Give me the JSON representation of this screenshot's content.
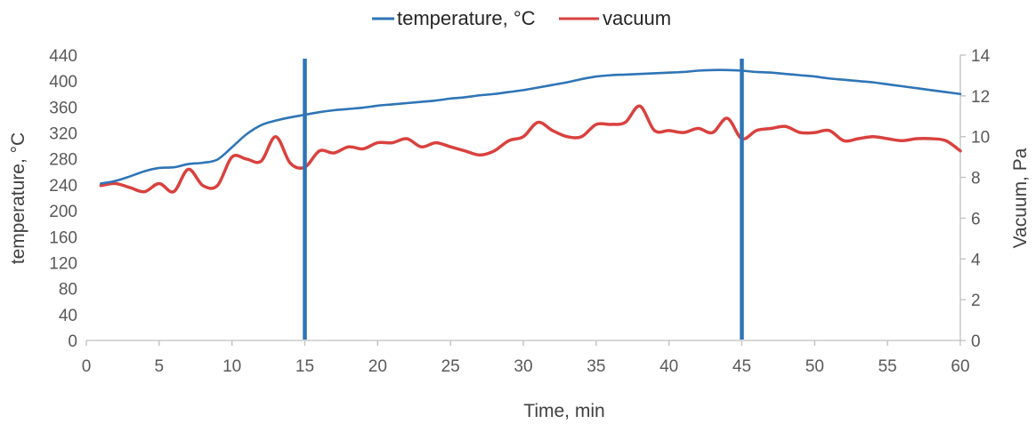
{
  "chart_data": {
    "type": "line",
    "xlabel": "Time, min",
    "ylabel_left": "temperature, °C",
    "ylabel_right": "Vacuum, Pa",
    "xlim": [
      0,
      60
    ],
    "ylim_left": [
      0,
      440
    ],
    "ylim_right": [
      0,
      14
    ],
    "x_ticks": [
      "0",
      "5",
      "10",
      "15",
      "20",
      "25",
      "30",
      "35",
      "40",
      "45",
      "50",
      "55",
      "60"
    ],
    "y_left_ticks": [
      "0",
      "40",
      "80",
      "120",
      "160",
      "200",
      "240",
      "280",
      "320",
      "360",
      "400",
      "440"
    ],
    "y_right_ticks": [
      "0",
      "2",
      "4",
      "6",
      "8",
      "10",
      "12",
      "14"
    ],
    "grid": false,
    "legend_position": "top-center",
    "vertical_markers": [
      15,
      45
    ],
    "marker_color": "#2e75b6",
    "series": [
      {
        "name": "temperature, °C",
        "axis": "left",
        "color": "#2e75b6",
        "x": [
          1,
          2,
          3,
          4,
          5,
          6,
          7,
          8,
          9,
          10,
          11,
          12,
          13,
          14,
          15,
          16,
          17,
          18,
          19,
          20,
          21,
          22,
          23,
          24,
          25,
          26,
          27,
          28,
          29,
          30,
          31,
          32,
          33,
          34,
          35,
          36,
          37,
          38,
          39,
          40,
          41,
          42,
          43,
          44,
          45,
          46,
          47,
          48,
          49,
          50,
          51,
          52,
          53,
          54,
          55,
          56,
          57,
          58,
          59,
          60
        ],
        "values": [
          242,
          246,
          253,
          261,
          266,
          267,
          272,
          274,
          279,
          298,
          318,
          332,
          339,
          344,
          348,
          352,
          355,
          357,
          359,
          362,
          364,
          366,
          368,
          370,
          373,
          375,
          378,
          380,
          383,
          386,
          390,
          394,
          398,
          403,
          407,
          409,
          410,
          411,
          412,
          413,
          414,
          416,
          417,
          417,
          416,
          414,
          413,
          411,
          409,
          407,
          404,
          402,
          400,
          398,
          395,
          392,
          389,
          386,
          383,
          380
        ]
      },
      {
        "name": "vacuum",
        "axis": "right",
        "color": "#d9413e",
        "x": [
          1,
          2,
          3,
          4,
          5,
          6,
          7,
          8,
          9,
          10,
          11,
          12,
          13,
          14,
          15,
          16,
          17,
          18,
          19,
          20,
          21,
          22,
          23,
          24,
          25,
          26,
          27,
          28,
          29,
          30,
          31,
          32,
          33,
          34,
          35,
          36,
          37,
          38,
          39,
          40,
          41,
          42,
          43,
          44,
          45,
          46,
          47,
          48,
          49,
          50,
          51,
          52,
          53,
          54,
          55,
          56,
          57,
          58,
          59,
          60
        ],
        "values": [
          7.6,
          7.7,
          7.5,
          7.3,
          7.7,
          7.3,
          8.4,
          7.6,
          7.6,
          9.0,
          8.9,
          8.8,
          10.0,
          8.7,
          8.5,
          9.3,
          9.2,
          9.5,
          9.4,
          9.7,
          9.7,
          9.9,
          9.5,
          9.7,
          9.5,
          9.3,
          9.1,
          9.3,
          9.8,
          10.0,
          10.7,
          10.3,
          10.0,
          10.0,
          10.6,
          10.6,
          10.7,
          11.5,
          10.3,
          10.3,
          10.2,
          10.4,
          10.2,
          10.9,
          9.9,
          10.3,
          10.4,
          10.5,
          10.2,
          10.2,
          10.3,
          9.8,
          9.9,
          10.0,
          9.9,
          9.8,
          9.9,
          9.9,
          9.8,
          9.3
        ]
      }
    ]
  }
}
